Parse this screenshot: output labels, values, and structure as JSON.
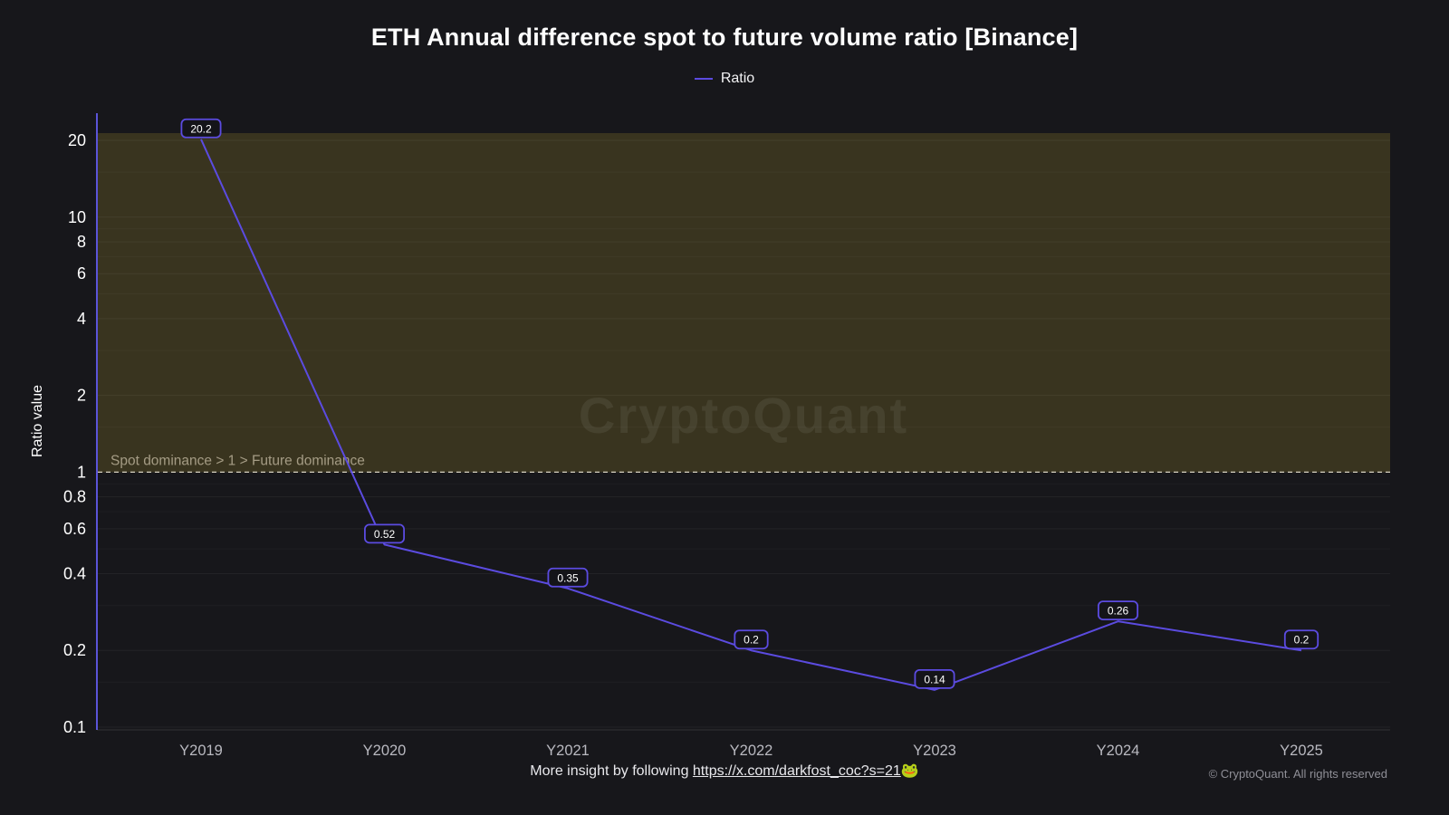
{
  "chart_data": {
    "type": "line",
    "title": "ETH Annual difference spot to future volume ratio [Binance]",
    "ylabel": "Ratio value",
    "y_scale": "log",
    "ylim": [
      0.1,
      22
    ],
    "categories": [
      "Y2019",
      "Y2020",
      "Y2021",
      "Y2022",
      "Y2023",
      "Y2024",
      "Y2025"
    ],
    "series": [
      {
        "name": "Ratio",
        "color": "#5b4be0",
        "values": [
          20.2,
          0.52,
          0.35,
          0.2,
          0.14,
          0.26,
          0.2
        ]
      }
    ],
    "point_labels": [
      "20.2",
      "0.52",
      "0.35",
      "0.2",
      "0.14",
      "0.26",
      "0.2"
    ],
    "y_ticks": [
      20,
      10,
      8,
      6,
      4,
      2,
      1,
      0.8,
      0.6,
      0.4,
      0.2,
      0.1
    ],
    "y_minor_ticks": [
      15,
      9,
      7,
      5,
      3,
      1.5,
      0.9,
      0.7,
      0.5,
      0.3,
      0.15
    ],
    "band": {
      "from": 1,
      "to": 22,
      "color": "rgba(168,148,48,0.24)"
    },
    "threshold": {
      "value": 1,
      "label": "Spot dominance > 1 > Future dominance"
    },
    "watermark": "CryptoQuant",
    "grid": true,
    "legend_position": "top"
  },
  "footer": {
    "prefix": "More insight by following ",
    "link_text": "https://x.com/darkfost_coc?s=21",
    "emoji": "🐸",
    "copyright": "© CryptoQuant. All rights reserved"
  }
}
